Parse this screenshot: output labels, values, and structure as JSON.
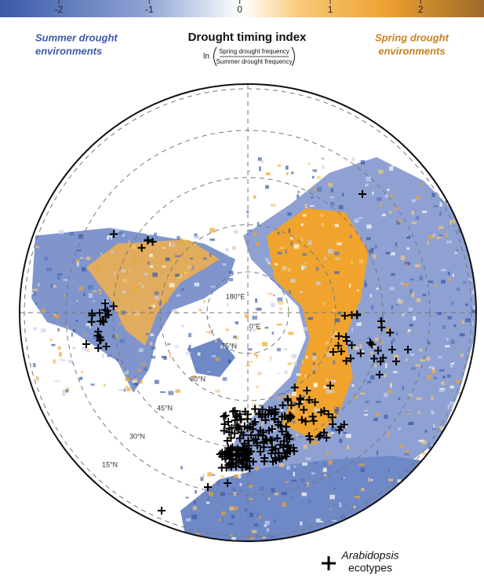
{
  "colorbar": {
    "range": [
      -2.65,
      2.7
    ],
    "ticks": [
      -2,
      -1,
      0,
      1,
      2
    ]
  },
  "title": "Drought timing index",
  "formula": {
    "ln": "ln",
    "numerator": "Spring drought frequency",
    "denominator": "Summer drought frequency"
  },
  "left_label": [
    "Summer drought",
    "environments"
  ],
  "right_label": [
    "Spring drought",
    "environments"
  ],
  "map_labels": {
    "meridians": [
      "180°E",
      "0°E"
    ],
    "latitudes": [
      "75°N",
      "60°N",
      "45°N",
      "30°N",
      "15°N"
    ]
  },
  "legend": [
    "Arabidopsis",
    "ecotypes"
  ]
}
